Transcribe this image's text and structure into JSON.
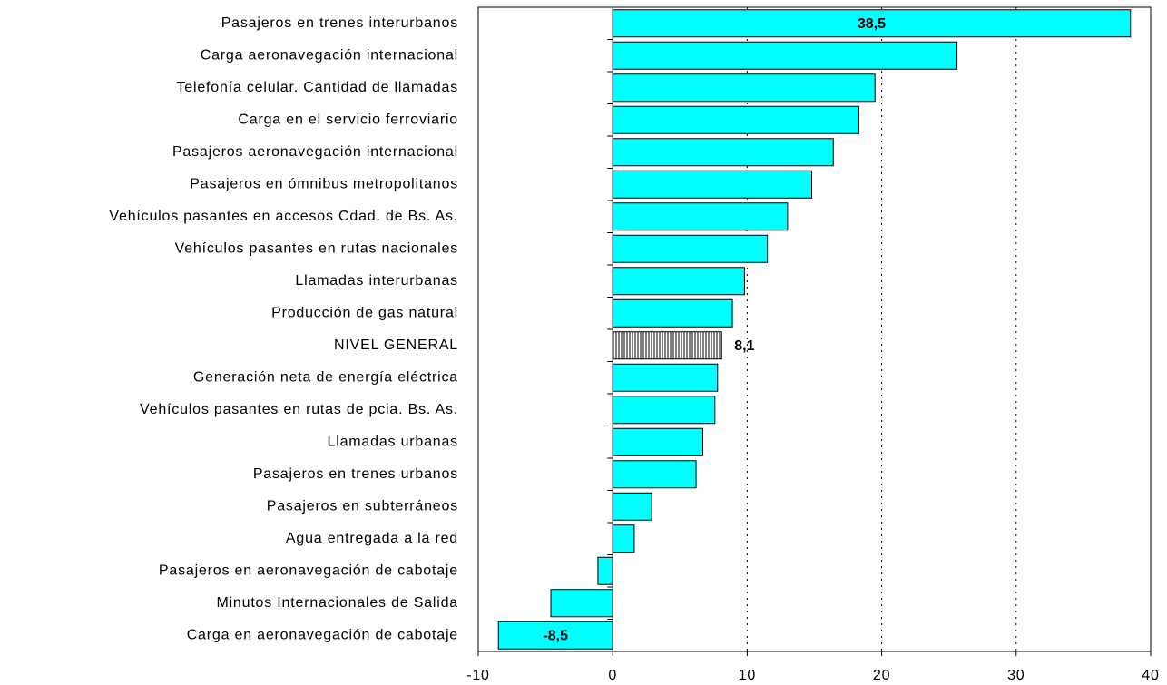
{
  "chart_data": {
    "type": "hbar",
    "categories": [
      "Pasajeros en trenes interurbanos",
      "Carga aeronavegación internacional",
      "Telefonía celular. Cantidad de llamadas",
      "Carga en el servicio ferroviario",
      "Pasajeros aeronavegación internacional",
      "Pasajeros en ómnibus metropolitanos",
      "Vehículos pasantes en accesos Cdad. de Bs. As.",
      "Vehículos pasantes en rutas nacionales",
      "Llamadas interurbanas",
      "Producción de gas natural",
      "NIVEL GENERAL",
      "Generación neta de energía eléctrica",
      "Vehículos pasantes en rutas de pcia. Bs. As.",
      "Llamadas urbanas",
      "Pasajeros en trenes urbanos",
      "Pasajeros en subterráneos",
      "Agua entregada a la red",
      "Pasajeros en aeronavegación de cabotaje",
      "Minutos Internacionales de Salida",
      "Carga en aeronavegación de cabotaje"
    ],
    "values": [
      38.5,
      25.6,
      19.5,
      18.3,
      16.4,
      14.8,
      13.0,
      11.5,
      9.8,
      8.9,
      8.1,
      7.8,
      7.6,
      6.7,
      6.2,
      2.9,
      1.6,
      -1.1,
      -4.6,
      -8.5
    ],
    "value_labels": [
      "38,5",
      null,
      null,
      null,
      null,
      null,
      null,
      null,
      null,
      null,
      "8,1",
      null,
      null,
      null,
      null,
      null,
      null,
      null,
      null,
      "-8,5"
    ],
    "color": "#00ffff",
    "hatched_index": 10,
    "xlim": [
      -10,
      40
    ],
    "xticks": [
      -10,
      0,
      10,
      20,
      30,
      40
    ],
    "grid": true
  }
}
